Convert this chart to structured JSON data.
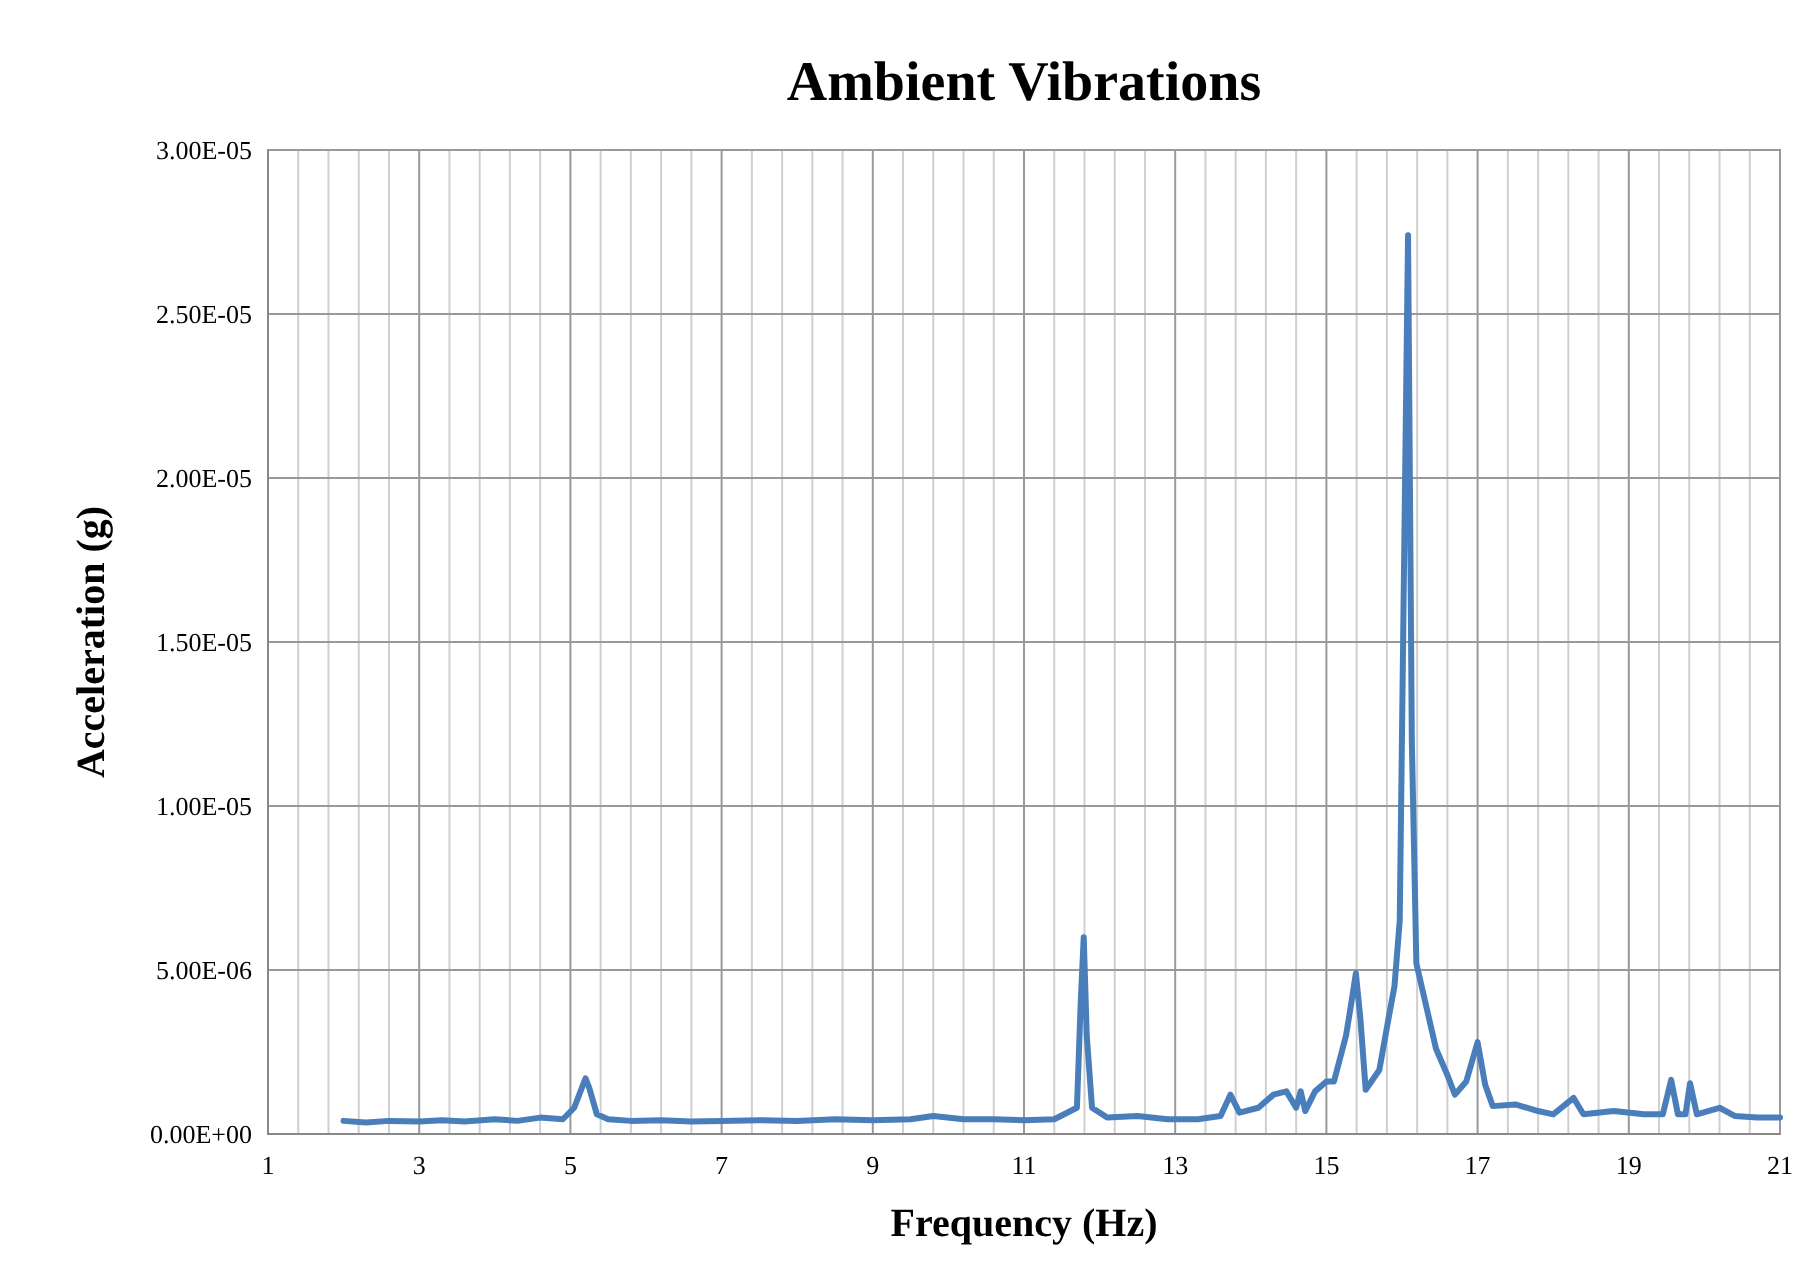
{
  "chart_data": {
    "type": "line",
    "title": "Ambient Vibrations",
    "xlabel": "Frequency (Hz)",
    "ylabel": "Acceleration (g)",
    "xlim": [
      1,
      21
    ],
    "xticks": [
      1,
      3,
      5,
      7,
      9,
      11,
      13,
      15,
      17,
      19,
      21
    ],
    "ylim": [
      0,
      3e-05
    ],
    "yticks": [
      {
        "value": 0,
        "label": "0.00E+00"
      },
      {
        "value": 5e-06,
        "label": "5.00E-06"
      },
      {
        "value": 1e-05,
        "label": "1.00E-05"
      },
      {
        "value": 1.5e-05,
        "label": "1.50E-05"
      },
      {
        "value": 2e-05,
        "label": "2.00E-05"
      },
      {
        "value": 2.5e-05,
        "label": "2.50E-05"
      },
      {
        "value": 3e-05,
        "label": "3.00E-05"
      }
    ],
    "grid": true,
    "marker": "none",
    "line_style": "solid",
    "series": [
      {
        "color": "#4a7ebb",
        "x": [
          2,
          2.3,
          2.6,
          3,
          3.3,
          3.6,
          4,
          4.3,
          4.6,
          4.9,
          5.05,
          5.15,
          5.2,
          5.25,
          5.35,
          5.5,
          5.8,
          6.2,
          6.6,
          7,
          7.5,
          8,
          8.5,
          9,
          9.5,
          9.8,
          10.2,
          10.6,
          11,
          11.4,
          11.7,
          11.75,
          11.79,
          11.83,
          11.9,
          12.1,
          12.5,
          12.9,
          13.3,
          13.6,
          13.73,
          13.85,
          14.1,
          14.3,
          14.47,
          14.6,
          14.66,
          14.72,
          14.85,
          15.0,
          15.1,
          15.26,
          15.33,
          15.39,
          15.45,
          15.52,
          15.7,
          15.82,
          15.9,
          15.97,
          16.02,
          16.08,
          16.13,
          16.19,
          16.32,
          16.45,
          16.6,
          16.7,
          16.85,
          17.0,
          17.1,
          17.2,
          17.5,
          17.8,
          18.0,
          18.27,
          18.4,
          18.8,
          19.2,
          19.45,
          19.56,
          19.65,
          19.75,
          19.81,
          19.9,
          20.2,
          20.4,
          20.7,
          21
        ],
        "values": [
          4e-07,
          3.5e-07,
          4e-07,
          3.8e-07,
          4.2e-07,
          3.8e-07,
          4.5e-07,
          4e-07,
          5e-07,
          4.5e-07,
          8e-07,
          1.4e-06,
          1.7e-06,
          1.4e-06,
          6e-07,
          4.5e-07,
          4e-07,
          4.2e-07,
          3.8e-07,
          4e-07,
          4.2e-07,
          4e-07,
          4.5e-07,
          4.2e-07,
          4.5e-07,
          5.5e-07,
          4.5e-07,
          4.5e-07,
          4.2e-07,
          4.5e-07,
          8e-07,
          4e-06,
          6e-06,
          3e-06,
          8e-07,
          5e-07,
          5.5e-07,
          4.5e-07,
          4.5e-07,
          5.5e-07,
          1.2e-06,
          6.5e-07,
          8e-07,
          1.2e-06,
          1.3e-06,
          8e-07,
          1.3e-06,
          7e-07,
          1.3e-06,
          1.6e-06,
          1.6e-06,
          3e-06,
          4e-06,
          4.9e-06,
          3.5e-06,
          1.35e-06,
          1.95e-06,
          3.5e-06,
          4.5e-06,
          6.5e-06,
          1.6e-05,
          2.74e-05,
          1.2e-05,
          5.2e-06,
          3.9e-06,
          2.6e-06,
          1.8e-06,
          1.2e-06,
          1.6e-06,
          2.8e-06,
          1.5e-06,
          8.5e-07,
          9e-07,
          7e-07,
          6e-07,
          1.1e-06,
          6e-07,
          7e-07,
          6e-07,
          6e-07,
          1.65e-06,
          6e-07,
          6e-07,
          1.55e-06,
          6e-07,
          8e-07,
          5.5e-07,
          5e-07,
          5e-07
        ]
      }
    ]
  }
}
